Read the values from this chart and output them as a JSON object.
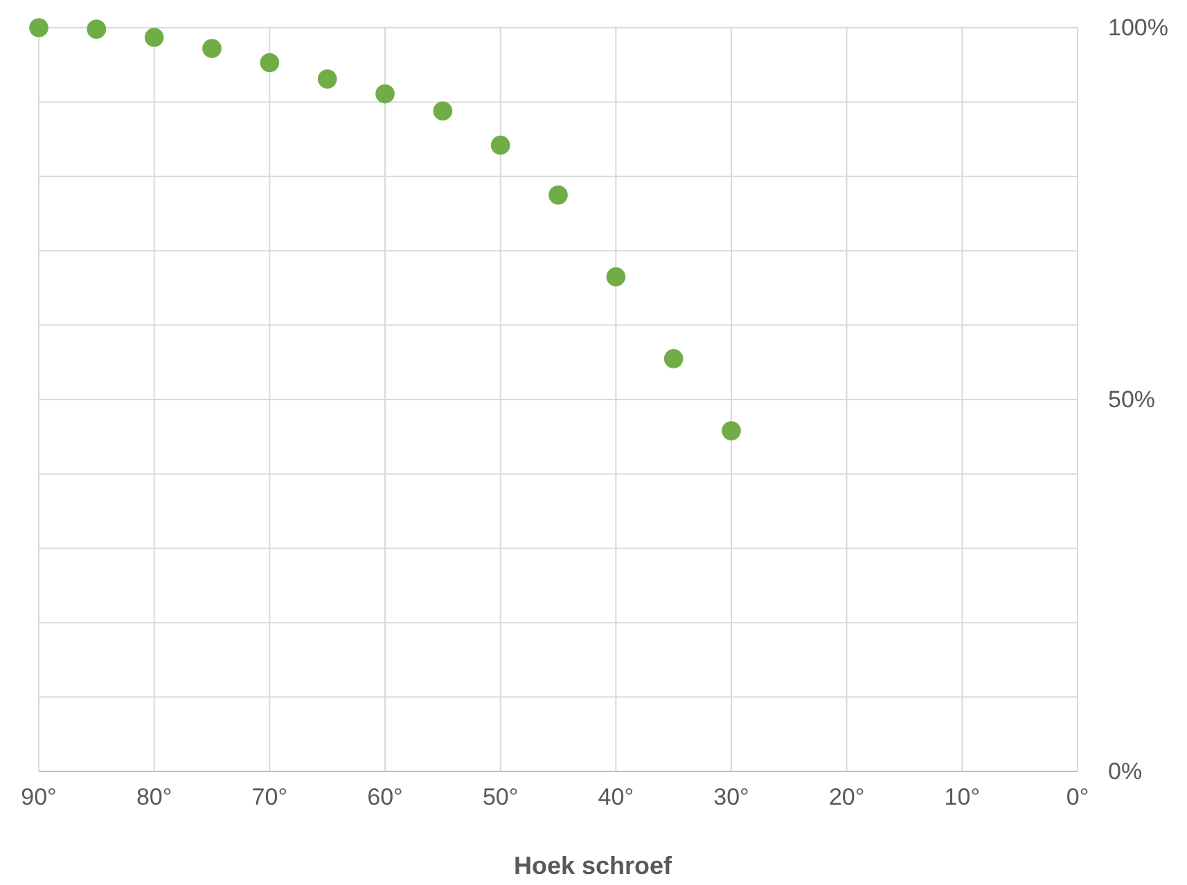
{
  "chart_data": {
    "type": "scatter",
    "xlabel": "Hoek schroef",
    "x": [
      90,
      85,
      80,
      75,
      70,
      65,
      60,
      55,
      50,
      45,
      40,
      35,
      30
    ],
    "values": [
      100,
      99.8,
      98.7,
      97.2,
      95.3,
      93.1,
      91.1,
      88.8,
      84.2,
      77.5,
      66.5,
      55.5,
      45.8
    ],
    "color": "#70ad47",
    "marker": "circle",
    "xlim": [
      90,
      0
    ],
    "xticks": [
      {
        "value": 90,
        "label": "90°"
      },
      {
        "value": 80,
        "label": "80°"
      },
      {
        "value": 70,
        "label": "70°"
      },
      {
        "value": 60,
        "label": "60°"
      },
      {
        "value": 50,
        "label": "50°"
      },
      {
        "value": 40,
        "label": "40°"
      },
      {
        "value": 30,
        "label": "30°"
      },
      {
        "value": 20,
        "label": "20°"
      },
      {
        "value": 10,
        "label": "10°"
      },
      {
        "value": 0,
        "label": "0°"
      }
    ],
    "ylim": [
      0,
      100
    ],
    "yticks": [
      {
        "value": 0,
        "label": "0%"
      },
      {
        "value": 10,
        "label": null
      },
      {
        "value": 20,
        "label": null
      },
      {
        "value": 30,
        "label": null
      },
      {
        "value": 40,
        "label": null
      },
      {
        "value": 50,
        "label": "50%"
      },
      {
        "value": 60,
        "label": null
      },
      {
        "value": 70,
        "label": null
      },
      {
        "value": 80,
        "label": null
      },
      {
        "value": 90,
        "label": null
      },
      {
        "value": 100,
        "label": "100%"
      }
    ],
    "grid": true
  }
}
